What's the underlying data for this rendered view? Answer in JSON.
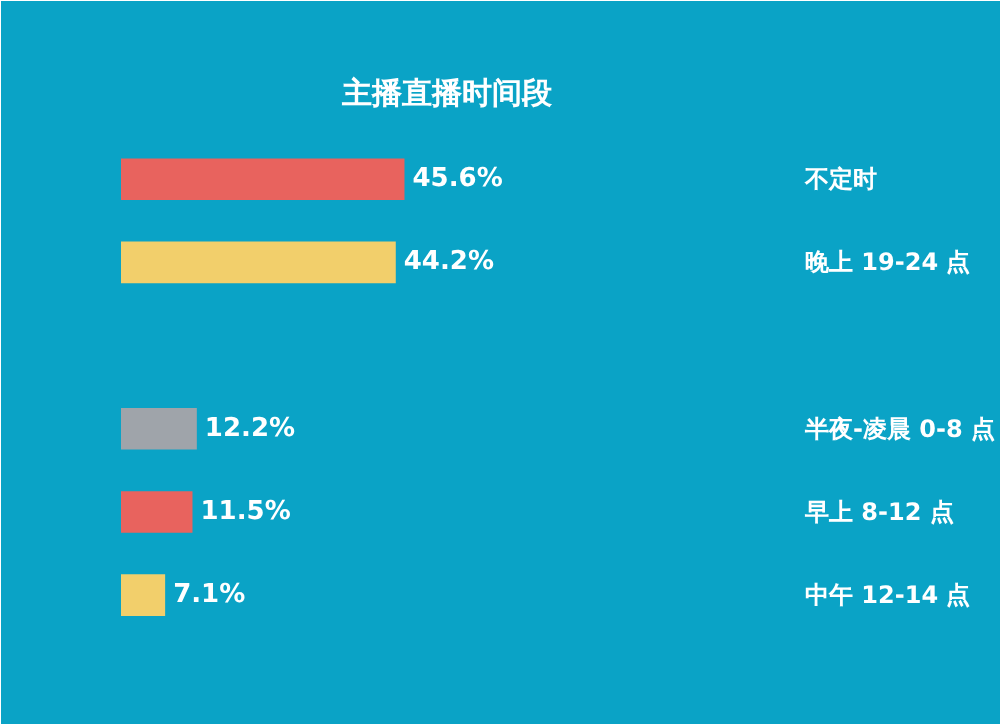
{
  "chart_data": {
    "type": "bar",
    "orientation": "horizontal",
    "title": "主播直播时间段",
    "categories": [
      "不定时",
      "晚上 19-24 点",
      null,
      "半夜-凌晨 0-8 点",
      "早上 8-12 点",
      "中午 12-14 点"
    ],
    "values": [
      45.6,
      44.2,
      null,
      12.2,
      11.5,
      7.1
    ],
    "value_labels": [
      "45.6%",
      "44.2%",
      null,
      "12.2%",
      "11.5%",
      "7.1%"
    ],
    "colors": [
      "#e8635e",
      "#f2cf6b",
      null,
      "#9fa4aa",
      "#e8635e",
      "#f2cf6b"
    ]
  }
}
